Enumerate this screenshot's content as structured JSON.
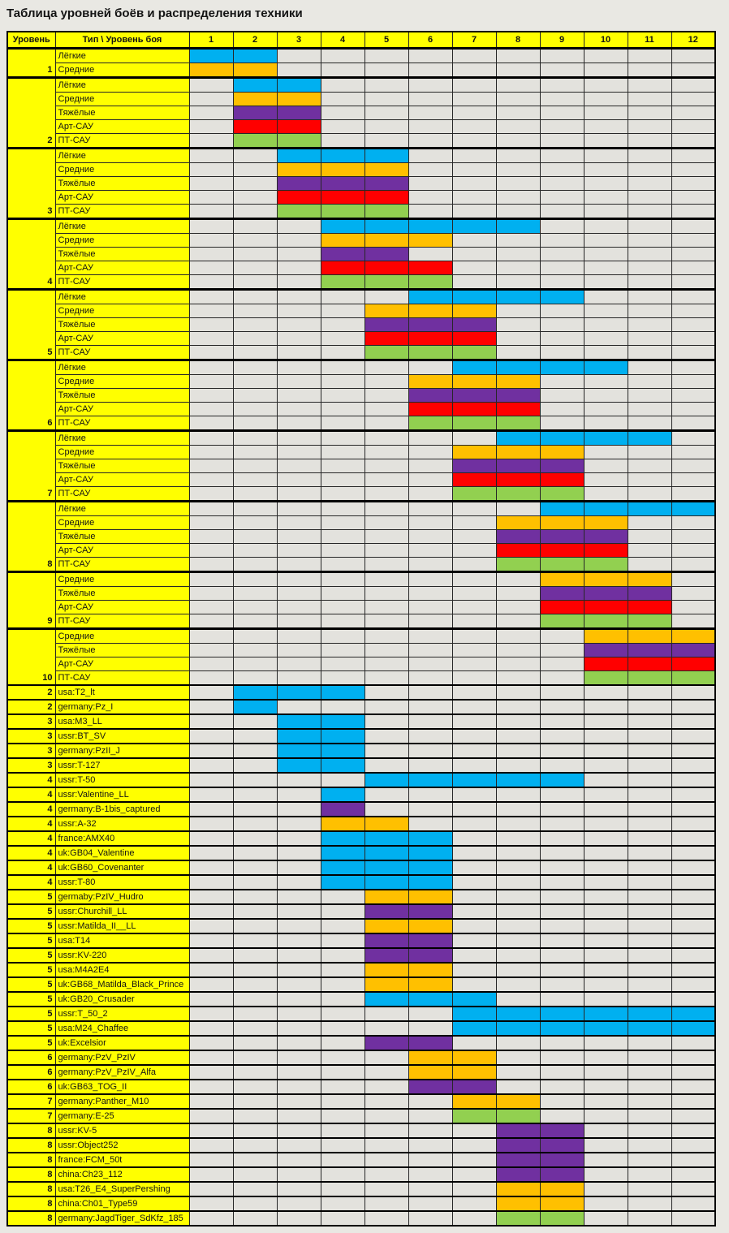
{
  "title": "Таблица уровней боёв и распределения техники",
  "table": {
    "header": {
      "level": "Уровень",
      "type": "Тип \\ Уровень боя",
      "battle_levels": [
        "1",
        "2",
        "3",
        "4",
        "5",
        "6",
        "7",
        "8",
        "9",
        "10",
        "11",
        "12"
      ]
    },
    "colors": {
      "light": "#00B0F0",
      "medium": "#FFC000",
      "heavy": "#7030A0",
      "spg": "#FF0000",
      "td": "#92D050",
      "header_bg": "#FFFF00",
      "grid_bg": "#E3E2DD",
      "page_bg": "#E9E8E3",
      "border": "#000000"
    },
    "groups": [
      {
        "level": "1",
        "rows": [
          {
            "label": "Лёгкие",
            "color": "light",
            "from": 1,
            "to": 2
          },
          {
            "label": "Средние",
            "color": "medium",
            "from": 1,
            "to": 2
          }
        ]
      },
      {
        "level": "2",
        "rows": [
          {
            "label": "Лёгкие",
            "color": "light",
            "from": 2,
            "to": 3
          },
          {
            "label": "Средние",
            "color": "medium",
            "from": 2,
            "to": 3
          },
          {
            "label": "Тяжёлые",
            "color": "heavy",
            "from": 2,
            "to": 3
          },
          {
            "label": "Арт-САУ",
            "color": "spg",
            "from": 2,
            "to": 3
          },
          {
            "label": "ПТ-САУ",
            "color": "td",
            "from": 2,
            "to": 3
          }
        ]
      },
      {
        "level": "3",
        "rows": [
          {
            "label": "Лёгкие",
            "color": "light",
            "from": 3,
            "to": 5
          },
          {
            "label": "Средние",
            "color": "medium",
            "from": 3,
            "to": 5
          },
          {
            "label": "Тяжёлые",
            "color": "heavy",
            "from": 3,
            "to": 5
          },
          {
            "label": "Арт-САУ",
            "color": "spg",
            "from": 3,
            "to": 5
          },
          {
            "label": "ПТ-САУ",
            "color": "td",
            "from": 3,
            "to": 5
          }
        ]
      },
      {
        "level": "4",
        "rows": [
          {
            "label": "Лёгкие",
            "color": "light",
            "from": 4,
            "to": 8
          },
          {
            "label": "Средние",
            "color": "medium",
            "from": 4,
            "to": 6
          },
          {
            "label": "Тяжёлые",
            "color": "heavy",
            "from": 4,
            "to": 5
          },
          {
            "label": "Арт-САУ",
            "color": "spg",
            "from": 4,
            "to": 6
          },
          {
            "label": "ПТ-САУ",
            "color": "td",
            "from": 4,
            "to": 6
          }
        ]
      },
      {
        "level": "5",
        "rows": [
          {
            "label": "Лёгкие",
            "color": "light",
            "from": 6,
            "to": 9
          },
          {
            "label": "Средние",
            "color": "medium",
            "from": 5,
            "to": 7
          },
          {
            "label": "Тяжёлые",
            "color": "heavy",
            "from": 5,
            "to": 7
          },
          {
            "label": "Арт-САУ",
            "color": "spg",
            "from": 5,
            "to": 7
          },
          {
            "label": "ПТ-САУ",
            "color": "td",
            "from": 5,
            "to": 7
          }
        ]
      },
      {
        "level": "6",
        "rows": [
          {
            "label": "Лёгкие",
            "color": "light",
            "from": 7,
            "to": 10
          },
          {
            "label": "Средние",
            "color": "medium",
            "from": 6,
            "to": 8
          },
          {
            "label": "Тяжёлые",
            "color": "heavy",
            "from": 6,
            "to": 8
          },
          {
            "label": "Арт-САУ",
            "color": "spg",
            "from": 6,
            "to": 8
          },
          {
            "label": "ПТ-САУ",
            "color": "td",
            "from": 6,
            "to": 8
          }
        ]
      },
      {
        "level": "7",
        "rows": [
          {
            "label": "Лёгкие",
            "color": "light",
            "from": 8,
            "to": 11
          },
          {
            "label": "Средние",
            "color": "medium",
            "from": 7,
            "to": 9
          },
          {
            "label": "Тяжёлые",
            "color": "heavy",
            "from": 7,
            "to": 9
          },
          {
            "label": "Арт-САУ",
            "color": "spg",
            "from": 7,
            "to": 9
          },
          {
            "label": "ПТ-САУ",
            "color": "td",
            "from": 7,
            "to": 9
          }
        ]
      },
      {
        "level": "8",
        "rows": [
          {
            "label": "Лёгкие",
            "color": "light",
            "from": 9,
            "to": 12
          },
          {
            "label": "Средние",
            "color": "medium",
            "from": 8,
            "to": 10
          },
          {
            "label": "Тяжёлые",
            "color": "heavy",
            "from": 8,
            "to": 10
          },
          {
            "label": "Арт-САУ",
            "color": "spg",
            "from": 8,
            "to": 10
          },
          {
            "label": "ПТ-САУ",
            "color": "td",
            "from": 8,
            "to": 10
          }
        ]
      },
      {
        "level": "9",
        "rows": [
          {
            "label": "Средние",
            "color": "medium",
            "from": 9,
            "to": 11
          },
          {
            "label": "Тяжёлые",
            "color": "heavy",
            "from": 9,
            "to": 11
          },
          {
            "label": "Арт-САУ",
            "color": "spg",
            "from": 9,
            "to": 11
          },
          {
            "label": "ПТ-САУ",
            "color": "td",
            "from": 9,
            "to": 11
          }
        ]
      },
      {
        "level": "10",
        "rows": [
          {
            "label": "Средние",
            "color": "medium",
            "from": 10,
            "to": 12
          },
          {
            "label": "Тяжёлые",
            "color": "heavy",
            "from": 10,
            "to": 12
          },
          {
            "label": "Арт-САУ",
            "color": "spg",
            "from": 10,
            "to": 12
          },
          {
            "label": "ПТ-САУ",
            "color": "td",
            "from": 10,
            "to": 12
          }
        ]
      }
    ],
    "special_rows": [
      {
        "level": "2",
        "label": "usa:T2_lt",
        "color": "light",
        "from": 2,
        "to": 4
      },
      {
        "level": "2",
        "label": "germany:Pz_I",
        "color": "light",
        "from": 2,
        "to": 2
      },
      {
        "level": "3",
        "label": "usa:M3_LL",
        "color": "light",
        "from": 3,
        "to": 4
      },
      {
        "level": "3",
        "label": "ussr:BT_SV",
        "color": "light",
        "from": 3,
        "to": 4
      },
      {
        "level": "3",
        "label": "germany:PzII_J",
        "color": "light",
        "from": 3,
        "to": 4
      },
      {
        "level": "3",
        "label": "ussr:T-127",
        "color": "light",
        "from": 3,
        "to": 4
      },
      {
        "level": "4",
        "label": "ussr:T-50",
        "color": "light",
        "from": 5,
        "to": 9
      },
      {
        "level": "4",
        "label": "ussr:Valentine_LL",
        "color": "light",
        "from": 4,
        "to": 4
      },
      {
        "level": "4",
        "label": "germany:B-1bis_captured",
        "color": "heavy",
        "from": 4,
        "to": 4
      },
      {
        "level": "4",
        "label": "ussr:A-32",
        "color": "medium",
        "from": 4,
        "to": 5
      },
      {
        "level": "4",
        "label": "france:AMX40",
        "color": "light",
        "from": 4,
        "to": 6
      },
      {
        "level": "4",
        "label": "uk:GB04_Valentine",
        "color": "light",
        "from": 4,
        "to": 6
      },
      {
        "level": "4",
        "label": "uk:GB60_Covenanter",
        "color": "light",
        "from": 4,
        "to": 6
      },
      {
        "level": "4",
        "label": "ussr:T-80",
        "color": "light",
        "from": 4,
        "to": 6
      },
      {
        "level": "5",
        "label": "germaby:PzIV_Hudro",
        "color": "medium",
        "from": 5,
        "to": 6
      },
      {
        "level": "5",
        "label": "ussr:Churchill_LL",
        "color": "heavy",
        "from": 5,
        "to": 6
      },
      {
        "level": "5",
        "label": "ussr:Matilda_II__LL",
        "color": "medium",
        "from": 5,
        "to": 6
      },
      {
        "level": "5",
        "label": "usa:T14",
        "color": "heavy",
        "from": 5,
        "to": 6
      },
      {
        "level": "5",
        "label": "ussr:KV-220",
        "color": "heavy",
        "from": 5,
        "to": 6
      },
      {
        "level": "5",
        "label": "usa:M4A2E4",
        "color": "medium",
        "from": 5,
        "to": 6
      },
      {
        "level": "5",
        "label": "uk:GB68_Matilda_Black_Prince",
        "color": "medium",
        "from": 5,
        "to": 6
      },
      {
        "level": "5",
        "label": "uk:GB20_Crusader",
        "color": "light",
        "from": 5,
        "to": 7
      },
      {
        "level": "5",
        "label": "ussr:T_50_2",
        "color": "light",
        "from": 7,
        "to": 12
      },
      {
        "level": "5",
        "label": "usa:M24_Chaffee",
        "color": "light",
        "from": 7,
        "to": 12
      },
      {
        "level": "5",
        "label": "uk:Excelsior",
        "color": "heavy",
        "from": 5,
        "to": 6
      },
      {
        "level": "6",
        "label": "germany:PzV_PzIV",
        "color": "medium",
        "from": 6,
        "to": 7
      },
      {
        "level": "6",
        "label": "germany:PzV_PzIV_Alfa",
        "color": "medium",
        "from": 6,
        "to": 7
      },
      {
        "level": "6",
        "label": "uk:GB63_TOG_II",
        "color": "heavy",
        "from": 6,
        "to": 7
      },
      {
        "level": "7",
        "label": "germany:Panther_M10",
        "color": "medium",
        "from": 7,
        "to": 8
      },
      {
        "level": "7",
        "label": "germany:E-25",
        "color": "td",
        "from": 7,
        "to": 8
      },
      {
        "level": "8",
        "label": "ussr:KV-5",
        "color": "heavy",
        "from": 8,
        "to": 9
      },
      {
        "level": "8",
        "label": "ussr:Object252",
        "color": "heavy",
        "from": 8,
        "to": 9
      },
      {
        "level": "8",
        "label": "france:FCM_50t",
        "color": "heavy",
        "from": 8,
        "to": 9
      },
      {
        "level": "8",
        "label": "china:Ch23_112",
        "color": "heavy",
        "from": 8,
        "to": 9
      },
      {
        "level": "8",
        "label": "usa:T26_E4_SuperPershing",
        "color": "medium",
        "from": 8,
        "to": 9
      },
      {
        "level": "8",
        "label": "china:Ch01_Type59",
        "color": "medium",
        "from": 8,
        "to": 9
      },
      {
        "level": "8",
        "label": "germany:JagdTiger_SdKfz_185",
        "color": "td",
        "from": 8,
        "to": 9
      }
    ]
  }
}
